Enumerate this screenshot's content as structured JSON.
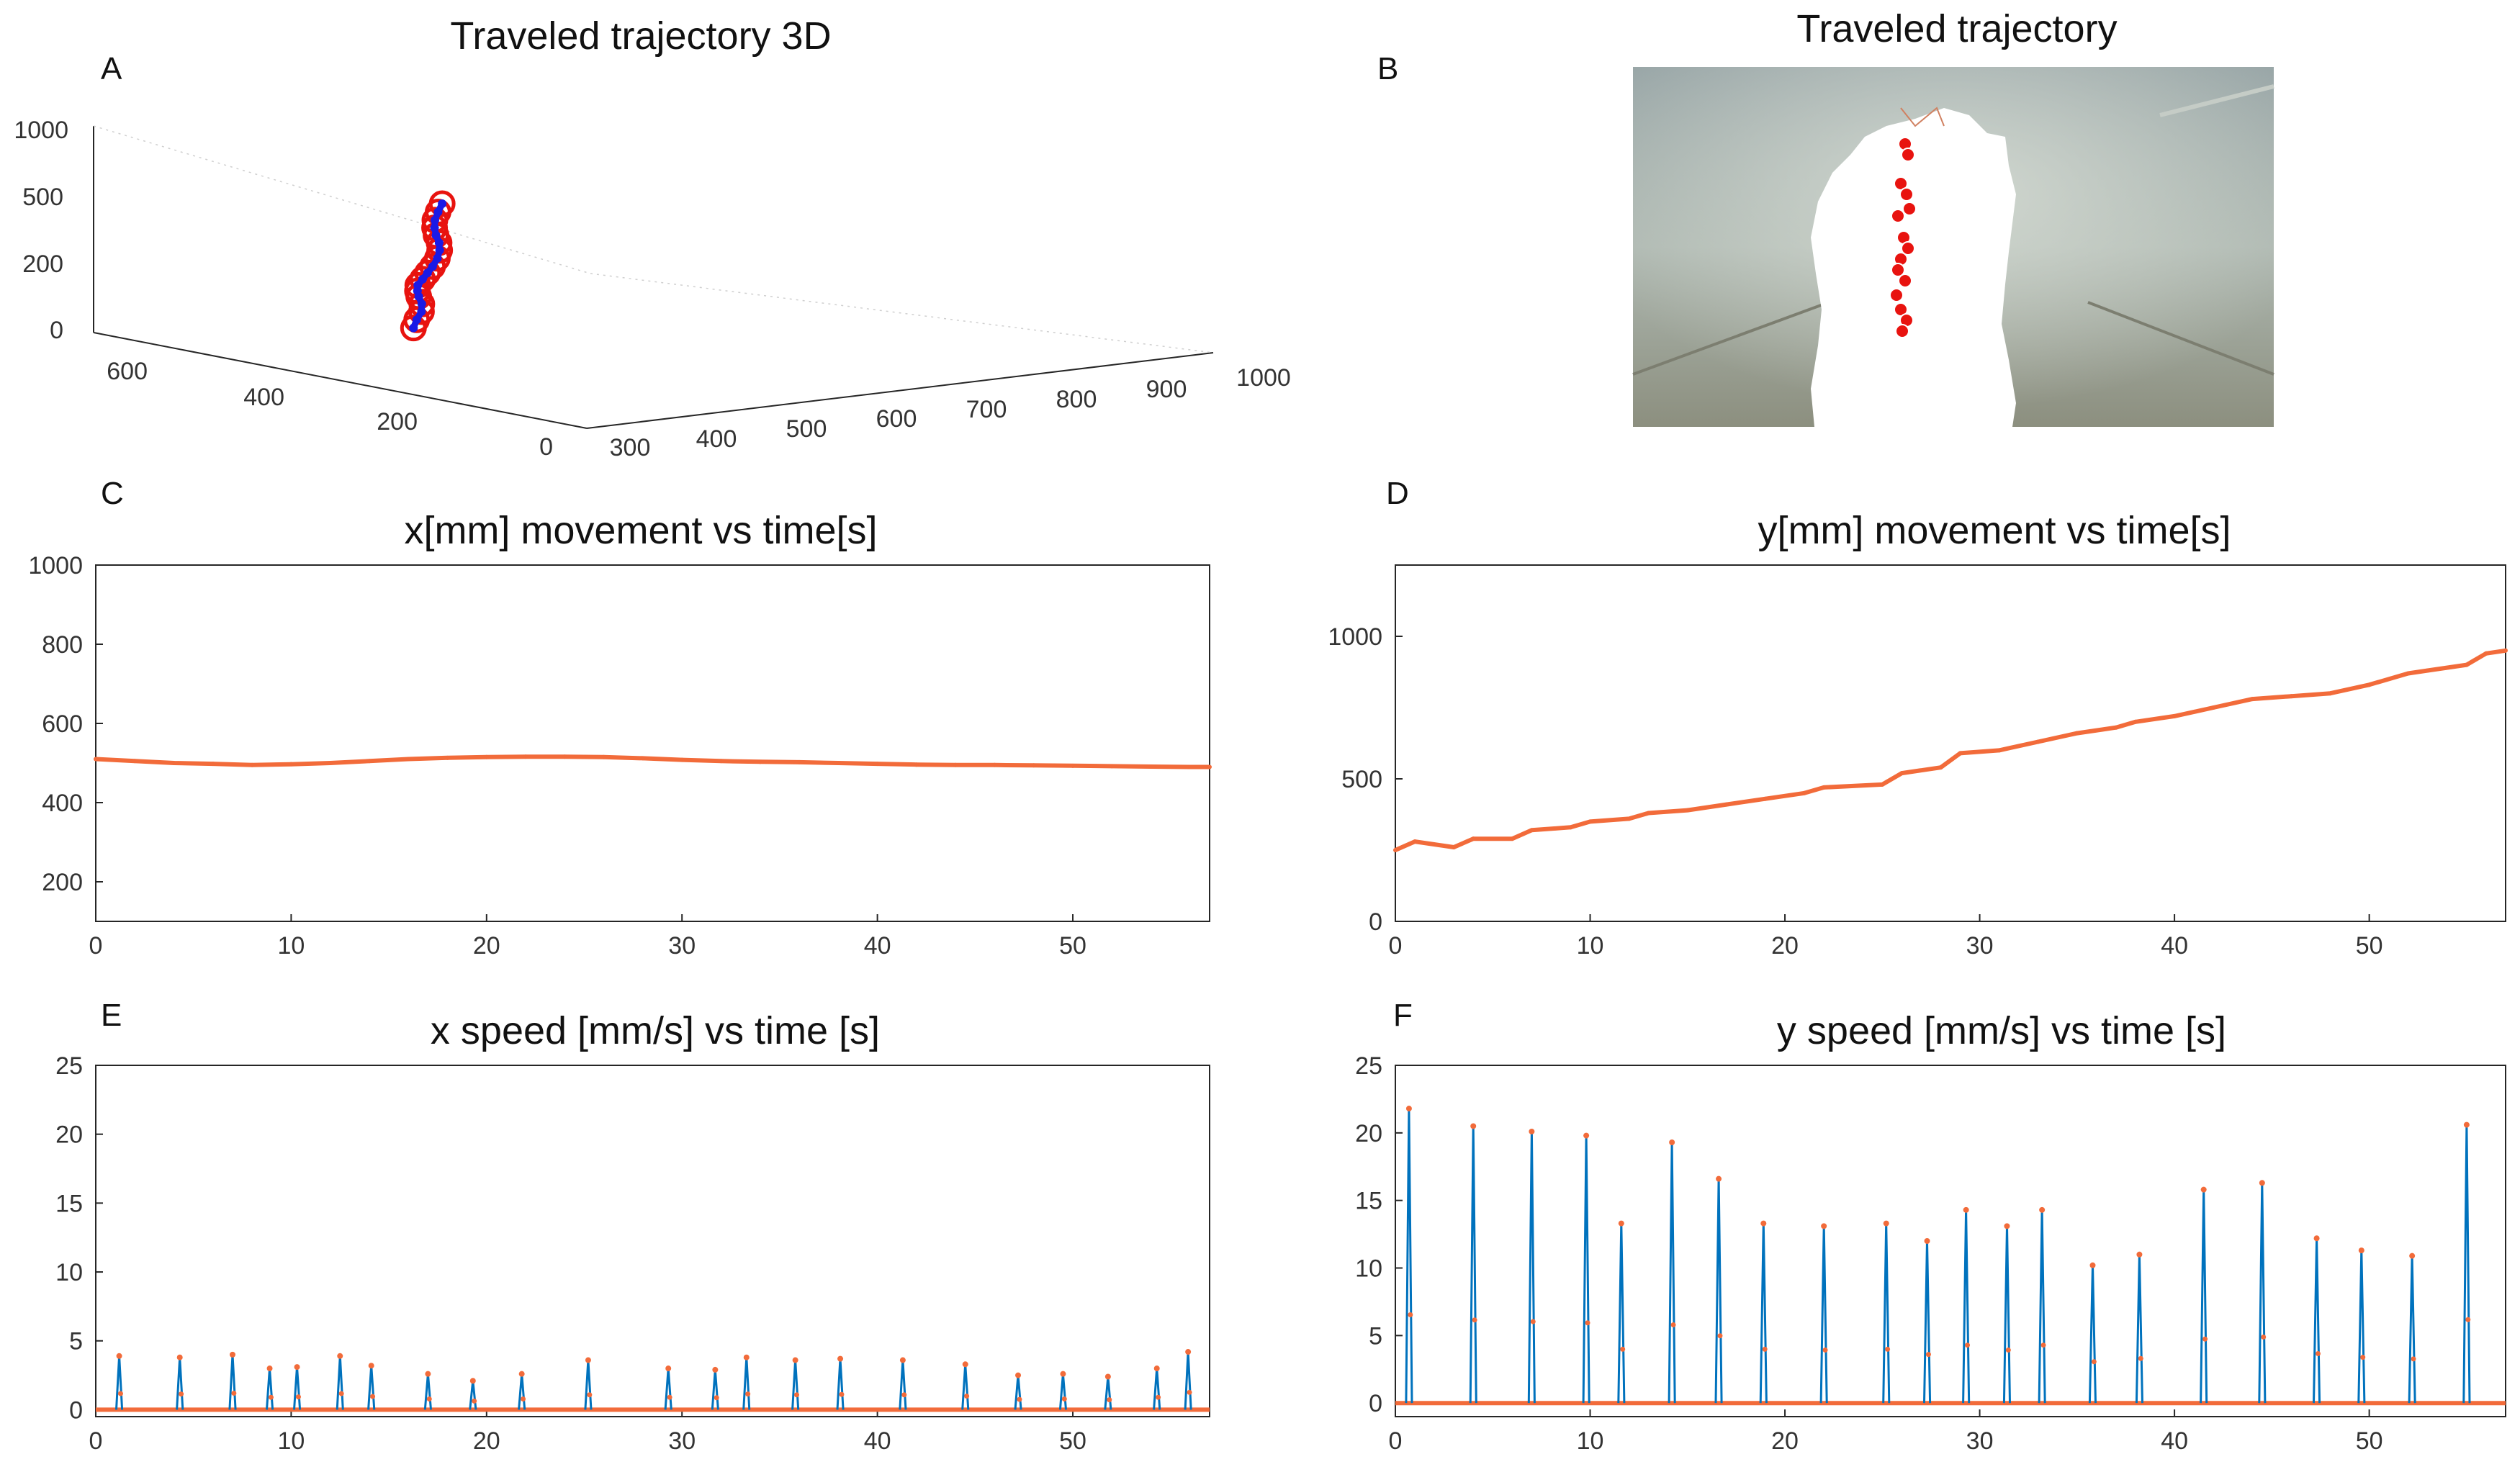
{
  "colors": {
    "line_blue": "#0072BD",
    "line_orange": "#F26B3A",
    "marker_red": "#E8130F",
    "marker_blue": "#1A1AE6"
  },
  "chart_data": [
    {
      "id": "A",
      "panel_label": "A",
      "type": "scatter3d",
      "title": "Traveled trajectory 3D",
      "xlabel": "",
      "ylabel": "",
      "zlabel": "",
      "xticks": [
        "300",
        "400",
        "500",
        "600",
        "700",
        "800",
        "900",
        "1000"
      ],
      "yticks": [
        "0",
        "200",
        "400",
        "600"
      ],
      "zticks": [
        "0",
        "200",
        "500",
        "1000"
      ],
      "xlim": [
        300,
        1000
      ],
      "ylim": [
        0,
        700
      ],
      "zlim": [
        0,
        1000
      ],
      "series": [
        {
          "marker": "red-circle",
          "x": [
            500,
            502,
            505,
            503,
            498,
            495,
            493,
            496,
            500,
            504,
            507,
            508,
            505,
            500,
            496,
            494,
            496,
            499
          ],
          "y": [
            500,
            498,
            495,
            492,
            490,
            488,
            485,
            482,
            480,
            478,
            475,
            473,
            470,
            468,
            465,
            462,
            460,
            458
          ],
          "z": [
            50,
            90,
            130,
            170,
            210,
            240,
            270,
            300,
            330,
            360,
            400,
            440,
            480,
            520,
            560,
            600,
            640,
            680
          ]
        }
      ]
    },
    {
      "id": "B",
      "panel_label": "B",
      "type": "image-overlay",
      "title": "Traveled trajectory"
    },
    {
      "id": "C",
      "panel_label": "C",
      "type": "line",
      "title": "x[mm] movement vs time[s]",
      "xlabel": "",
      "ylabel": "",
      "xlim": [
        0,
        57
      ],
      "ylim": [
        100,
        1000
      ],
      "xticks": [
        0,
        10,
        20,
        30,
        40,
        50
      ],
      "yticks": [
        200,
        400,
        600,
        800,
        1000
      ],
      "series": [
        {
          "x": [
            0,
            2,
            4,
            6,
            8,
            10,
            12,
            14,
            16,
            18,
            20,
            22,
            24,
            26,
            28,
            30,
            32,
            34,
            36,
            38,
            40,
            42,
            44,
            46,
            48,
            50,
            52,
            54,
            56,
            57
          ],
          "values": [
            510,
            505,
            500,
            498,
            495,
            497,
            500,
            505,
            510,
            513,
            515,
            516,
            516,
            515,
            512,
            508,
            505,
            503,
            502,
            500,
            498,
            496,
            495,
            495,
            494,
            493,
            492,
            491,
            490,
            490
          ]
        }
      ]
    },
    {
      "id": "D",
      "panel_label": "D",
      "type": "line",
      "title": "y[mm] movement vs time[s]",
      "xlabel": "",
      "ylabel": "",
      "xlim": [
        0,
        57
      ],
      "ylim": [
        0,
        1250
      ],
      "xticks": [
        0,
        10,
        20,
        30,
        40,
        50
      ],
      "yticks": [
        0,
        500,
        1000
      ],
      "series": [
        {
          "x": [
            0,
            1,
            3,
            4,
            6,
            7,
            9,
            10,
            12,
            13,
            15,
            17,
            19,
            21,
            22,
            25,
            26,
            28,
            29,
            31,
            33,
            35,
            37,
            38,
            40,
            42,
            44,
            46,
            48,
            50,
            52,
            53,
            55,
            56,
            57
          ],
          "values": [
            250,
            280,
            260,
            290,
            290,
            320,
            330,
            350,
            360,
            380,
            390,
            410,
            430,
            450,
            470,
            480,
            520,
            540,
            590,
            600,
            630,
            660,
            680,
            700,
            720,
            750,
            780,
            790,
            800,
            830,
            870,
            880,
            900,
            940,
            950
          ]
        }
      ]
    },
    {
      "id": "E",
      "panel_label": "E",
      "type": "line",
      "title": "x speed [mm/s] vs time [s]",
      "xlabel": "",
      "ylabel": "",
      "xlim": [
        0,
        57
      ],
      "ylim": [
        -0.5,
        25
      ],
      "xticks": [
        0,
        10,
        20,
        30,
        40,
        50
      ],
      "yticks": [
        0,
        5,
        10,
        15,
        20,
        25
      ],
      "spike_times": [
        1.2,
        4.3,
        7.0,
        8.9,
        10.3,
        12.5,
        14.1,
        17.0,
        19.3,
        21.8,
        25.2,
        29.3,
        31.7,
        33.3,
        35.8,
        38.1,
        41.3,
        44.5,
        47.2,
        49.5,
        51.8,
        54.3,
        55.9
      ],
      "spike_values": [
        3.9,
        3.8,
        4.0,
        3.0,
        3.1,
        3.9,
        3.2,
        2.6,
        2.1,
        2.6,
        3.6,
        3.0,
        2.9,
        3.8,
        3.6,
        3.7,
        3.6,
        3.3,
        2.5,
        2.6,
        2.4,
        3.0,
        4.2
      ]
    },
    {
      "id": "F",
      "panel_label": "F",
      "type": "line",
      "title": "y speed [mm/s] vs time [s]",
      "xlabel": "",
      "ylabel": "",
      "xlim": [
        0,
        57
      ],
      "ylim": [
        -1,
        25
      ],
      "xticks": [
        0,
        10,
        20,
        30,
        40,
        50
      ],
      "yticks": [
        0,
        5,
        10,
        15,
        20,
        25
      ],
      "spike_times": [
        0.7,
        4.0,
        7.0,
        9.8,
        11.6,
        14.2,
        16.6,
        18.9,
        22.0,
        25.2,
        27.3,
        29.3,
        31.4,
        33.2,
        35.8,
        38.2,
        41.5,
        44.5,
        47.3,
        49.6,
        52.2,
        55.0
      ],
      "spike_values": [
        21.8,
        20.5,
        20.1,
        19.8,
        13.3,
        19.3,
        16.6,
        13.3,
        13.1,
        13.3,
        12.0,
        14.3,
        13.1,
        14.3,
        10.2,
        11.0,
        15.8,
        16.3,
        12.2,
        11.3,
        10.9,
        20.6
      ]
    }
  ]
}
